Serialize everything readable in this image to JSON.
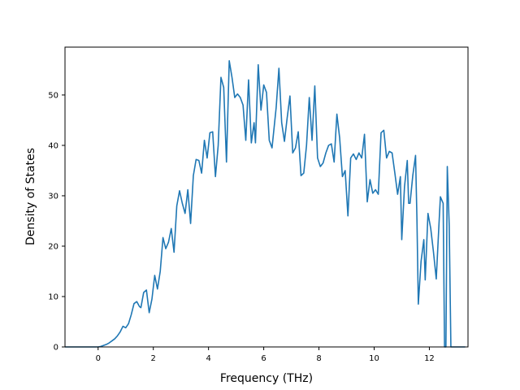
{
  "chart_data": {
    "type": "line",
    "title": "",
    "xlabel": "Frequency (THz)",
    "ylabel": "Density of States",
    "xlim": [
      -1.2,
      13.4
    ],
    "ylim": [
      0,
      59.5
    ],
    "xticks": [
      0,
      2,
      4,
      6,
      8,
      10,
      12
    ],
    "yticks": [
      0,
      10,
      20,
      30,
      40,
      50
    ],
    "xtick_labels": [
      "0",
      "2",
      "4",
      "6",
      "8",
      "10",
      "12"
    ],
    "ytick_labels": [
      "0",
      "10",
      "20",
      "30",
      "40",
      "50"
    ],
    "grid": false,
    "legend": "none",
    "line_color": "#1f77b4",
    "series": [
      {
        "points": [
          [
            -1.2,
            0
          ],
          [
            -0.6,
            0
          ],
          [
            0.0,
            0
          ],
          [
            0.1,
            0.1
          ],
          [
            0.2,
            0.3
          ],
          [
            0.3,
            0.5
          ],
          [
            0.4,
            0.8
          ],
          [
            0.5,
            1.2
          ],
          [
            0.6,
            1.6
          ],
          [
            0.7,
            2.2
          ],
          [
            0.8,
            3.0
          ],
          [
            0.9,
            4.1
          ],
          [
            1.0,
            3.8
          ],
          [
            1.1,
            4.6
          ],
          [
            1.2,
            6.4
          ],
          [
            1.3,
            8.6
          ],
          [
            1.4,
            9.0
          ],
          [
            1.5,
            8.0
          ],
          [
            1.55,
            7.8
          ],
          [
            1.65,
            10.8
          ],
          [
            1.75,
            11.3
          ],
          [
            1.85,
            6.8
          ],
          [
            1.95,
            9.5
          ],
          [
            2.05,
            14.2
          ],
          [
            2.15,
            11.5
          ],
          [
            2.25,
            15.0
          ],
          [
            2.35,
            21.7
          ],
          [
            2.45,
            19.5
          ],
          [
            2.55,
            20.8
          ],
          [
            2.65,
            23.5
          ],
          [
            2.75,
            18.8
          ],
          [
            2.85,
            28.0
          ],
          [
            2.95,
            31.0
          ],
          [
            3.05,
            28.5
          ],
          [
            3.15,
            26.5
          ],
          [
            3.25,
            31.2
          ],
          [
            3.35,
            24.5
          ],
          [
            3.45,
            34.0
          ],
          [
            3.55,
            37.2
          ],
          [
            3.65,
            37.0
          ],
          [
            3.75,
            34.5
          ],
          [
            3.85,
            41.0
          ],
          [
            3.95,
            37.5
          ],
          [
            4.05,
            42.5
          ],
          [
            4.15,
            42.7
          ],
          [
            4.25,
            33.8
          ],
          [
            4.35,
            40.0
          ],
          [
            4.45,
            53.5
          ],
          [
            4.55,
            51.5
          ],
          [
            4.65,
            36.7
          ],
          [
            4.75,
            56.8
          ],
          [
            4.85,
            53.5
          ],
          [
            4.95,
            49.5
          ],
          [
            5.05,
            50.2
          ],
          [
            5.15,
            49.5
          ],
          [
            5.25,
            48.0
          ],
          [
            5.35,
            41.0
          ],
          [
            5.45,
            53.0
          ],
          [
            5.55,
            40.5
          ],
          [
            5.65,
            44.5
          ],
          [
            5.7,
            40.5
          ],
          [
            5.8,
            56.0
          ],
          [
            5.9,
            47.0
          ],
          [
            6.0,
            52.0
          ],
          [
            6.1,
            50.5
          ],
          [
            6.2,
            41.0
          ],
          [
            6.3,
            39.5
          ],
          [
            6.45,
            47.5
          ],
          [
            6.55,
            55.3
          ],
          [
            6.65,
            44.5
          ],
          [
            6.75,
            40.8
          ],
          [
            6.85,
            45.5
          ],
          [
            6.95,
            49.8
          ],
          [
            7.05,
            38.5
          ],
          [
            7.15,
            39.5
          ],
          [
            7.25,
            42.7
          ],
          [
            7.35,
            34.0
          ],
          [
            7.45,
            34.5
          ],
          [
            7.55,
            40.0
          ],
          [
            7.65,
            49.5
          ],
          [
            7.75,
            41.0
          ],
          [
            7.85,
            51.8
          ],
          [
            7.95,
            37.5
          ],
          [
            8.05,
            35.8
          ],
          [
            8.15,
            36.5
          ],
          [
            8.25,
            38.5
          ],
          [
            8.35,
            40.0
          ],
          [
            8.45,
            40.3
          ],
          [
            8.55,
            36.7
          ],
          [
            8.65,
            46.2
          ],
          [
            8.75,
            41.5
          ],
          [
            8.85,
            33.8
          ],
          [
            8.95,
            35.0
          ],
          [
            9.05,
            26.0
          ],
          [
            9.15,
            37.5
          ],
          [
            9.25,
            38.3
          ],
          [
            9.35,
            37.2
          ],
          [
            9.45,
            38.5
          ],
          [
            9.55,
            37.5
          ],
          [
            9.65,
            42.2
          ],
          [
            9.75,
            28.8
          ],
          [
            9.85,
            33.2
          ],
          [
            9.95,
            30.5
          ],
          [
            10.05,
            31.2
          ],
          [
            10.15,
            30.3
          ],
          [
            10.25,
            42.5
          ],
          [
            10.35,
            43.0
          ],
          [
            10.45,
            37.5
          ],
          [
            10.55,
            38.8
          ],
          [
            10.65,
            38.5
          ],
          [
            10.75,
            34.5
          ],
          [
            10.85,
            30.3
          ],
          [
            10.95,
            33.8
          ],
          [
            11.0,
            21.3
          ],
          [
            11.1,
            31.8
          ],
          [
            11.2,
            37.0
          ],
          [
            11.25,
            28.5
          ],
          [
            11.3,
            28.5
          ],
          [
            11.4,
            34.0
          ],
          [
            11.5,
            38.0
          ],
          [
            11.55,
            25.5
          ],
          [
            11.6,
            8.5
          ],
          [
            11.7,
            17.0
          ],
          [
            11.8,
            21.3
          ],
          [
            11.85,
            13.3
          ],
          [
            11.95,
            26.5
          ],
          [
            12.05,
            23.5
          ],
          [
            12.15,
            18.8
          ],
          [
            12.25,
            13.5
          ],
          [
            12.35,
            24.5
          ],
          [
            12.4,
            29.8
          ],
          [
            12.5,
            28.5
          ],
          [
            12.55,
            0
          ],
          [
            12.6,
            0
          ],
          [
            12.65,
            35.8
          ],
          [
            12.72,
            24.0
          ],
          [
            12.78,
            0
          ],
          [
            12.9,
            0
          ],
          [
            13.1,
            0
          ],
          [
            13.3,
            0
          ]
        ]
      }
    ]
  }
}
